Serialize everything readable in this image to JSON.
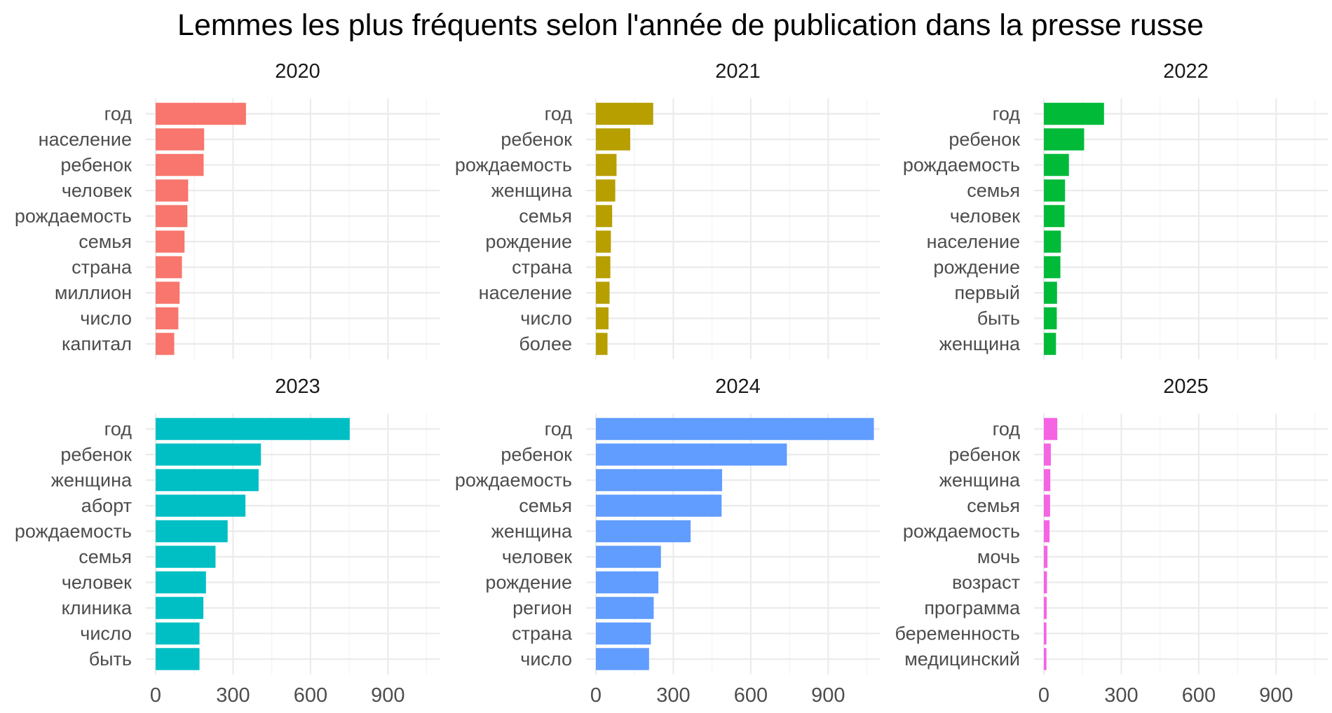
{
  "chart_data": {
    "type": "bar",
    "orientation": "horizontal",
    "title": "Lemmes les plus fréquents selon l'année de publication dans la presse russe",
    "xlabel": "",
    "ylabel": "",
    "xlim": [
      0,
      1100
    ],
    "x_ticks": [
      0,
      300,
      600,
      900
    ],
    "grid": true,
    "legend": "none",
    "facets": [
      {
        "label": "2020",
        "color": "#F8766D",
        "categories": [
          "год",
          "население",
          "ребенок",
          "человек",
          "рождаемость",
          "семья",
          "страна",
          "миллион",
          "число",
          "капитал"
        ],
        "values": [
          350,
          188,
          186,
          126,
          123,
          112,
          102,
          93,
          88,
          72
        ]
      },
      {
        "label": "2021",
        "color": "#B79F00",
        "categories": [
          "год",
          "ребенок",
          "рождаемость",
          "женщина",
          "семья",
          "рождение",
          "страна",
          "население",
          "число",
          "более"
        ],
        "values": [
          222,
          133,
          80,
          75,
          63,
          58,
          56,
          53,
          49,
          45
        ]
      },
      {
        "label": "2022",
        "color": "#00BA38",
        "categories": [
          "год",
          "ребенок",
          "рождаемость",
          "семья",
          "человек",
          "население",
          "рождение",
          "первый",
          "быть",
          "женщина"
        ],
        "values": [
          233,
          156,
          97,
          82,
          80,
          66,
          64,
          51,
          50,
          47
        ]
      },
      {
        "label": "2023",
        "color": "#00BFC4",
        "categories": [
          "год",
          "ребенок",
          "женщина",
          "аборт",
          "рождаемость",
          "семья",
          "человек",
          "клиника",
          "число",
          "быть"
        ],
        "values": [
          752,
          408,
          399,
          348,
          279,
          232,
          195,
          185,
          170,
          170
        ]
      },
      {
        "label": "2024",
        "color": "#619CFF",
        "categories": [
          "год",
          "ребенок",
          "рождаемость",
          "семья",
          "женщина",
          "человек",
          "рождение",
          "регион",
          "страна",
          "число"
        ],
        "values": [
          1077,
          740,
          489,
          487,
          367,
          252,
          242,
          224,
          213,
          206
        ]
      },
      {
        "label": "2025",
        "color": "#F564E3",
        "categories": [
          "год",
          "ребенок",
          "женщина",
          "семья",
          "рождаемость",
          "мочь",
          "возраст",
          "программа",
          "беременность",
          "медицинский"
        ],
        "values": [
          52,
          27,
          25,
          24,
          22,
          14,
          12,
          11,
          10,
          10
        ]
      }
    ]
  }
}
